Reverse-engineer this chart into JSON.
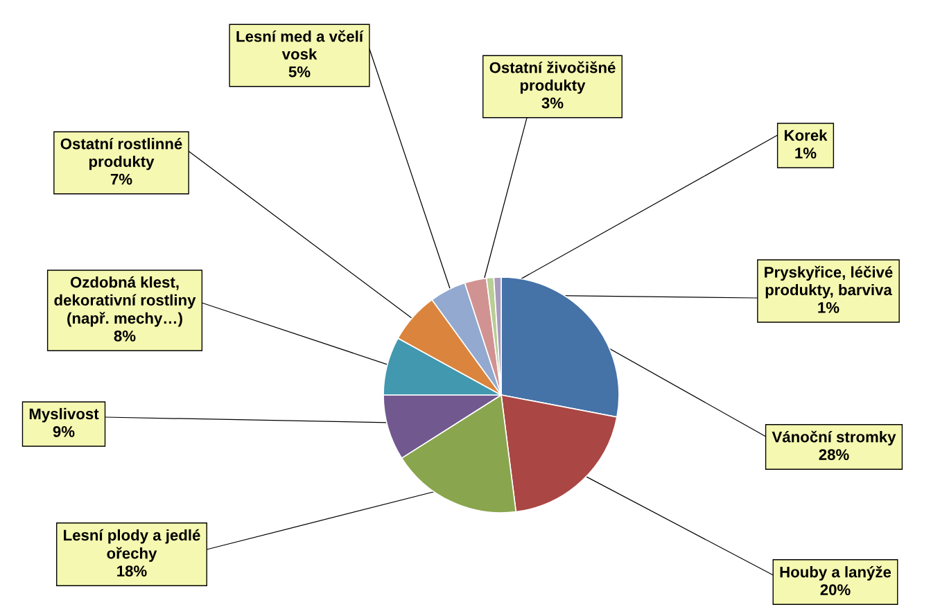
{
  "chart_data": {
    "type": "pie",
    "categories": [
      "Vánoční stromky",
      "Houby a lanýže",
      "Lesní plody a jedlé\nořechy",
      "Myslivost",
      "Ozdobná klest,\ndekorativní rostliny\n(např. mechy…)",
      "Ostatní rostlinné\nprodukty",
      "Lesní med a včelí\nvosk",
      "Ostatní živočišné\nprodukty",
      "Korek",
      "Pryskyřice, léčivé\nprodukty, barviva"
    ],
    "values": [
      28,
      20,
      18,
      9,
      8,
      7,
      5,
      3,
      1,
      1
    ],
    "value_labels": [
      "28%",
      "20%",
      "18%",
      "9%",
      "8%",
      "7%",
      "5%",
      "3%",
      "1%",
      "1%"
    ],
    "colors": [
      "#4572a7",
      "#aa4643",
      "#89a54e",
      "#71588f",
      "#4198af",
      "#db843d",
      "#93a9cf",
      "#d19392",
      "#b9cd96",
      "#a99bbd"
    ],
    "legend": false
  }
}
